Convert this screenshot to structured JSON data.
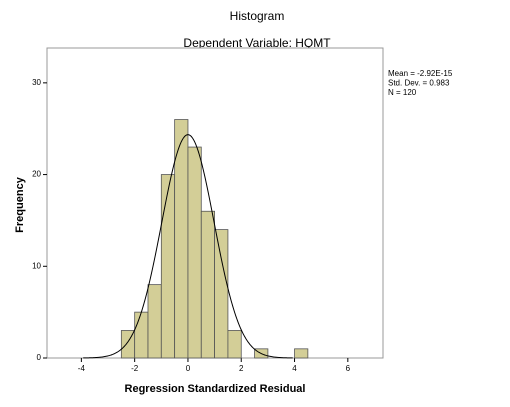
{
  "chart_data": {
    "type": "histogram",
    "title": "Histogram",
    "subtitle": "Dependent Variable: HQMT",
    "x_label": "Regression Standardized Residual",
    "y_label": "Frequency",
    "bins": [
      -2.5,
      -2,
      -1.5,
      -1,
      -0.5,
      0,
      0.5,
      1,
      1.5,
      2,
      2.5,
      3,
      3.5,
      4,
      4.5
    ],
    "values": [
      3,
      5,
      8,
      20,
      26,
      23,
      16,
      14,
      3,
      0,
      1,
      0,
      0,
      1
    ],
    "color": "#d3ce97",
    "xlim": [
      -5.29,
      7.32
    ],
    "xticks": [
      -4,
      -2,
      0,
      2,
      4,
      6
    ],
    "ylim": [
      0,
      33.8
    ],
    "yticks": [
      0,
      10,
      20,
      30
    ],
    "grid": false,
    "stats": [
      {
        "label": "Mean = -2.92E-15",
        "value": -2.92e-15
      },
      {
        "label": "Std. Dev. = 0.983",
        "value": 0.983
      },
      {
        "label": "N = 120",
        "value": 120
      }
    ]
  }
}
